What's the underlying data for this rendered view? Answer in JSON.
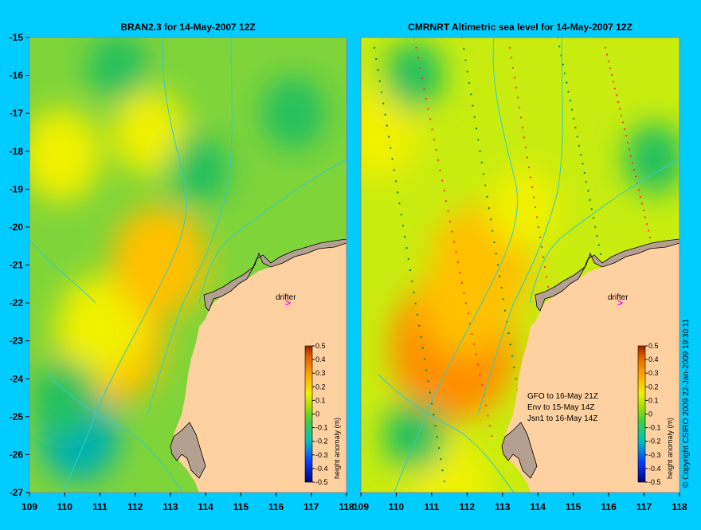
{
  "panels": [
    {
      "title": "BRAN2.3 for 14-May-2007 12Z",
      "drifter_label": "drifter",
      "notes": [],
      "colorbar": {
        "ticks": [
          "0.5",
          "0.4",
          "0.3",
          "0.2",
          "0.1",
          "0",
          "-0.1",
          "-0.2",
          "-0.3",
          "-0.4",
          "-0.5"
        ],
        "label": "height anomaly (m)"
      },
      "blobs": [
        {
          "lon": 111.3,
          "lat": -23.0,
          "value": 0.28
        },
        {
          "lon": 111.0,
          "lat": -22.6,
          "value": 0.18
        },
        {
          "lon": 112.7,
          "lat": -20.9,
          "value": 0.22
        },
        {
          "lon": 109.9,
          "lat": -18.1,
          "value": 0.15
        },
        {
          "lon": 112.4,
          "lat": -17.5,
          "value": 0.12
        },
        {
          "lon": 110.4,
          "lat": -25.5,
          "value": -0.14
        },
        {
          "lon": 110.0,
          "lat": -24.5,
          "value": -0.08
        },
        {
          "lon": 116.5,
          "lat": -17.0,
          "value": -0.07
        },
        {
          "lon": 113.8,
          "lat": -18.5,
          "value": -0.06
        },
        {
          "lon": 111.5,
          "lat": -15.8,
          "value": -0.05
        }
      ]
    },
    {
      "title": "CMRNRT Altimetric sea level  for 14-May-2007 12Z",
      "drifter_label": "drifter",
      "notes": [
        "GFO to 16-May 21Z",
        "Env to 15-May 14Z",
        "Jsn1 to 16-May 14Z"
      ],
      "colorbar": {
        "ticks": [
          "0.5",
          "0.4",
          "0.3",
          "0.2",
          "0.1",
          "0",
          "-0.1",
          "-0.2",
          "-0.3",
          "-0.4",
          "-0.5"
        ],
        "label": "height anomaly (m)"
      },
      "blobs": [
        {
          "lon": 111.6,
          "lat": -23.2,
          "value": 0.35
        },
        {
          "lon": 112.4,
          "lat": -21.0,
          "value": 0.25
        },
        {
          "lon": 112.0,
          "lat": -22.0,
          "value": 0.2
        },
        {
          "lon": 109.5,
          "lat": -17.5,
          "value": 0.15
        },
        {
          "lon": 111.5,
          "lat": -26.8,
          "value": 0.15
        },
        {
          "lon": 113.6,
          "lat": -19.5,
          "value": 0.1
        },
        {
          "lon": 117.3,
          "lat": -18.2,
          "value": -0.06
        },
        {
          "lon": 110.5,
          "lat": -25.5,
          "value": -0.06
        },
        {
          "lon": 110.5,
          "lat": -16.0,
          "value": -0.05
        }
      ]
    }
  ],
  "axes": {
    "lon_ticks": [
      "109",
      "110",
      "111",
      "112",
      "113",
      "114",
      "115",
      "116",
      "117",
      "118"
    ],
    "lat_ticks": [
      "-15",
      "-16",
      "-17",
      "-18",
      "-19",
      "-20",
      "-21",
      "-22",
      "-23",
      "-24",
      "-25",
      "-26",
      "-27"
    ],
    "lon_range": [
      109,
      118
    ],
    "lat_range": [
      -27,
      -15
    ]
  },
  "copyright": "© Copyright CSIRO 2009   22-Jan-2009 19:30:11",
  "colors": {
    "background": "#00ccff",
    "land": "#ffd0a0",
    "coast_detail": "#b4a090",
    "contour": "#33cccc",
    "drifter": "#ff00ff"
  }
}
